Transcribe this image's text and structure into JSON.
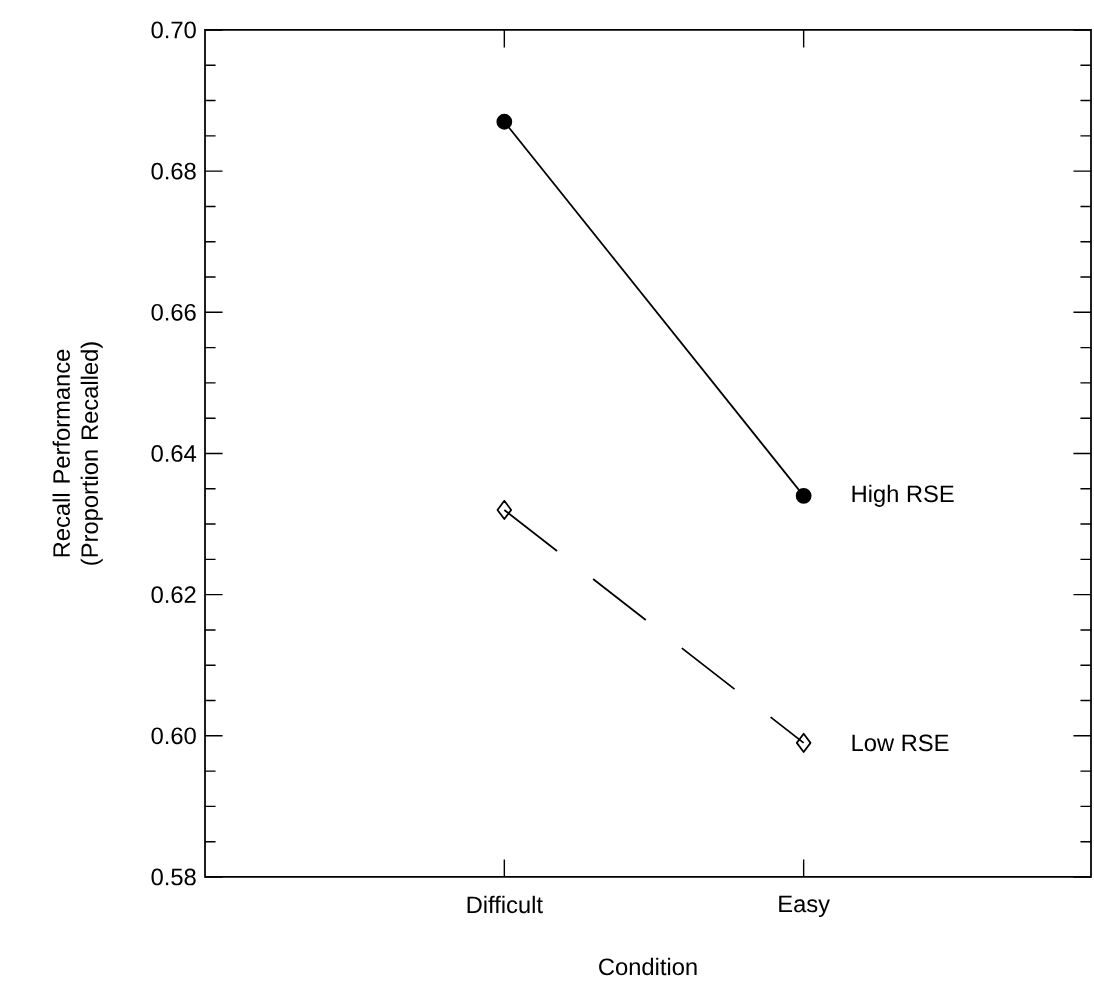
{
  "chart_data": {
    "type": "line",
    "xlabel": "Condition",
    "ylabel": "Recall Performance (Proportion Recalled)",
    "categories": [
      "Difficult",
      "Easy"
    ],
    "ylim": [
      0.58,
      0.7
    ],
    "yticks": [
      0.58,
      {
        "value": 0.6,
        "label": "0.60"
      },
      0.62,
      0.64,
      0.66,
      0.68,
      {
        "value": 0.7,
        "label": "0.70"
      }
    ],
    "grid": false,
    "series": [
      {
        "name": "High RSE",
        "color": "#000000",
        "values": [
          0.687,
          0.634
        ],
        "marker": "circle",
        "line_style": "solid"
      },
      {
        "name": "Low RSE",
        "color": "#000000",
        "values": [
          0.632,
          0.599
        ],
        "marker": "diamond",
        "line_style": "dashed"
      }
    ]
  }
}
